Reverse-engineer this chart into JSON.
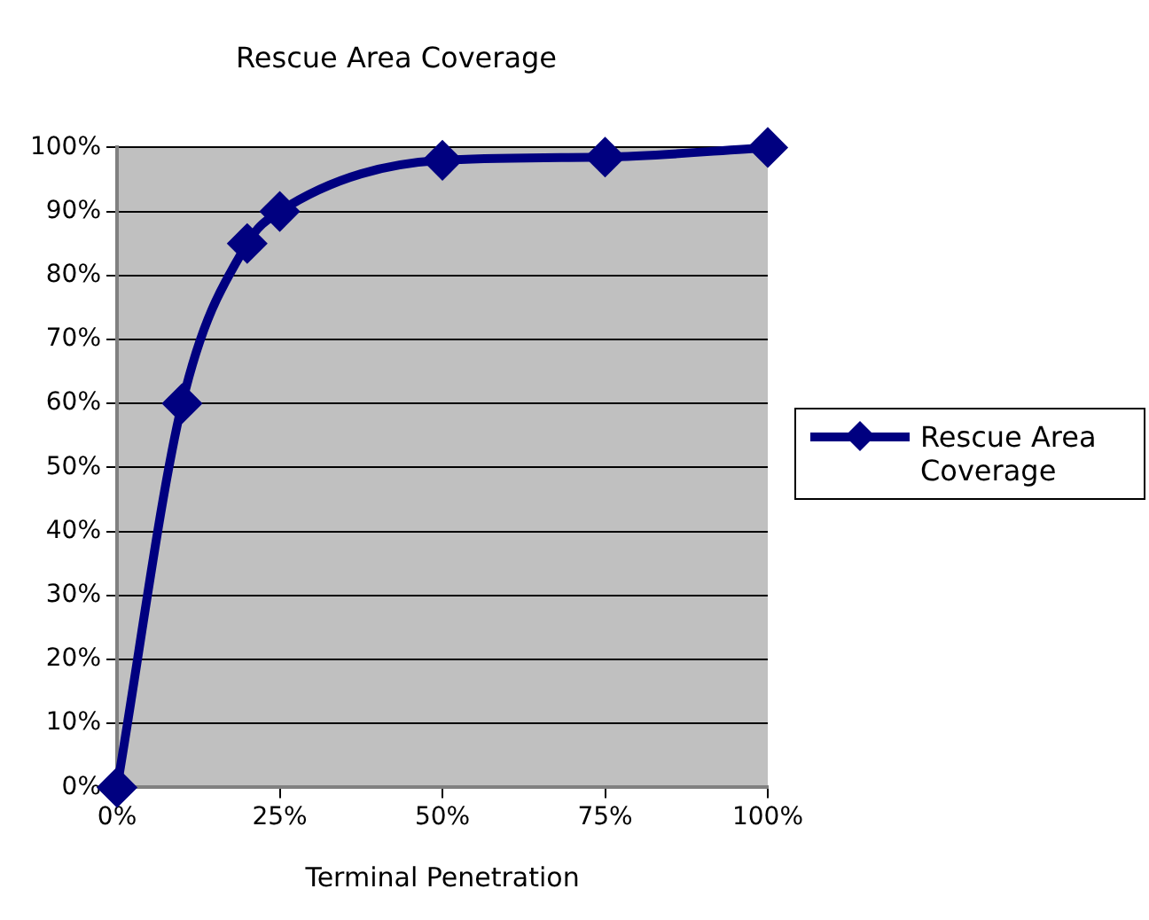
{
  "chart_data": {
    "type": "line",
    "title": "Rescue Area Coverage",
    "xlabel": "Terminal Penetration",
    "x": [
      0,
      10,
      20,
      25,
      50,
      75,
      100
    ],
    "series": [
      {
        "name": "Rescue Area Coverage",
        "color": "#000080",
        "values": [
          0,
          60,
          85,
          90,
          98,
          98.5,
          100
        ]
      }
    ],
    "xlim": [
      0,
      100
    ],
    "xticks": [
      {
        "value": 0,
        "label": "0%"
      },
      {
        "value": 25,
        "label": "25%"
      },
      {
        "value": 50,
        "label": "50%"
      },
      {
        "value": 75,
        "label": "75%"
      },
      {
        "value": 100,
        "label": "100%"
      }
    ],
    "ylim": [
      0,
      100
    ],
    "yticks": [
      {
        "value": 0,
        "label": "0%"
      },
      {
        "value": 10,
        "label": "10%"
      },
      {
        "value": 20,
        "label": "20%"
      },
      {
        "value": 30,
        "label": "30%"
      },
      {
        "value": 40,
        "label": "40%"
      },
      {
        "value": 50,
        "label": "50%"
      },
      {
        "value": 60,
        "label": "60%"
      },
      {
        "value": 70,
        "label": "70%"
      },
      {
        "value": 80,
        "label": "80%"
      },
      {
        "value": 90,
        "label": "90%"
      },
      {
        "value": 100,
        "label": "100%"
      }
    ],
    "grid": "y",
    "legend": "right",
    "marker": "diamond",
    "line_style": "solid"
  }
}
